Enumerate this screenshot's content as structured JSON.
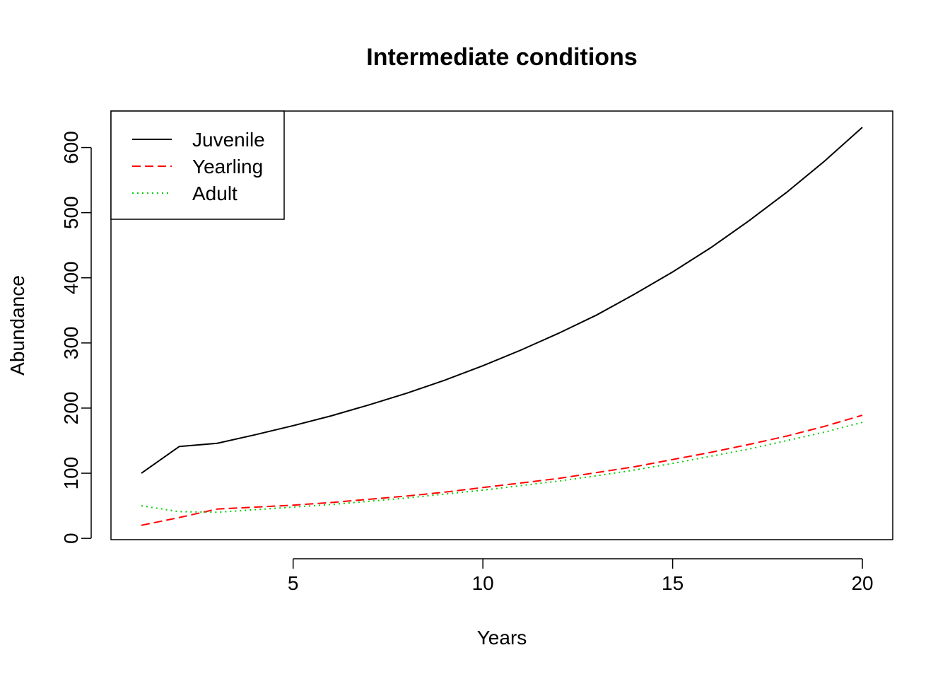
{
  "chart_data": {
    "type": "line",
    "title": "Intermediate conditions",
    "xlabel": "Years",
    "ylabel": "Abundance",
    "xlim": [
      0.2,
      20.8
    ],
    "ylim": [
      -2,
      656
    ],
    "xticks": [
      5,
      10,
      15,
      20
    ],
    "yticks": [
      0,
      100,
      200,
      300,
      400,
      500,
      600
    ],
    "grid": false,
    "legend_position": "top-left",
    "x": [
      1,
      2,
      3,
      4,
      5,
      6,
      7,
      8,
      9,
      10,
      11,
      12,
      13,
      14,
      15,
      16,
      17,
      18,
      19,
      20
    ],
    "series": [
      {
        "name": "Juvenile",
        "color": "#000000",
        "linestyle": "solid",
        "values": [
          100,
          141,
          146,
          159,
          173,
          188,
          205,
          223,
          243,
          265,
          289,
          315,
          343,
          375,
          409,
          446,
          487,
          531,
          579,
          631
        ]
      },
      {
        "name": "Yearling",
        "color": "#ff0000",
        "linestyle": "dashed",
        "values": [
          20,
          32,
          45,
          48,
          51,
          55,
          60,
          65,
          71,
          78,
          85,
          92,
          101,
          110,
          121,
          132,
          144,
          157,
          172,
          189
        ]
      },
      {
        "name": "Adult",
        "color": "#00cd00",
        "linestyle": "dotted",
        "values": [
          50,
          41,
          40,
          44,
          48,
          52,
          57,
          62,
          68,
          74,
          81,
          88,
          96,
          105,
          115,
          126,
          137,
          150,
          163,
          178
        ]
      }
    ]
  }
}
